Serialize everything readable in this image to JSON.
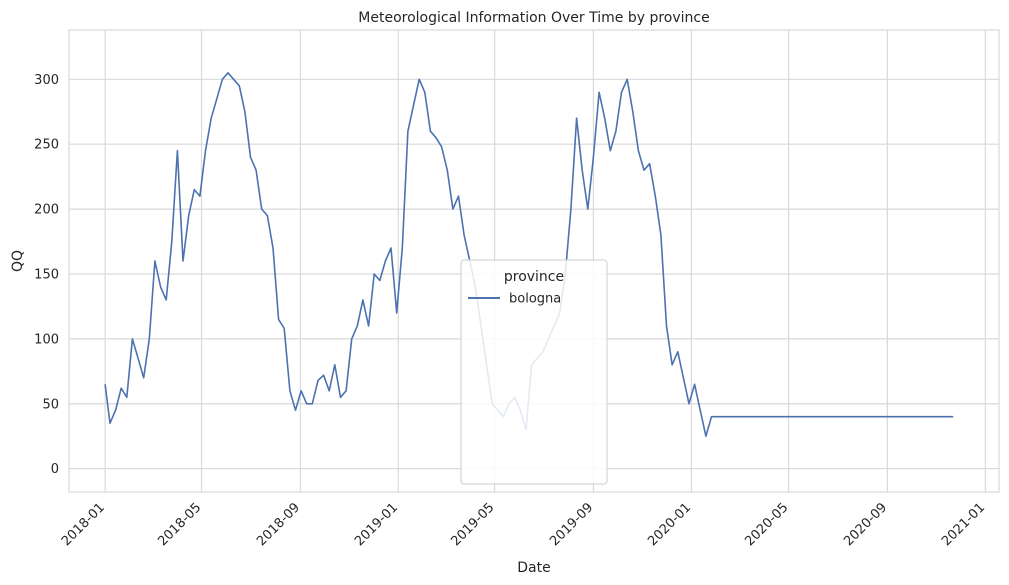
{
  "chart_data": {
    "type": "line",
    "title": "Meteorological Information Over Time by province",
    "xlabel": "Date",
    "ylabel": "QQ",
    "x_range": [
      "2017-11-17",
      "2021-01-18"
    ],
    "ylim": [
      -18,
      338
    ],
    "x_ticks": [
      "2018-01",
      "2018-05",
      "2018-09",
      "2019-01",
      "2019-05",
      "2019-09",
      "2020-01",
      "2020-05",
      "2020-09",
      "2021-01"
    ],
    "y_ticks": [
      0,
      50,
      100,
      150,
      200,
      250,
      300
    ],
    "grid": true,
    "legend": {
      "title": "province",
      "placement": "center"
    },
    "series_x": [
      "2018-01-01",
      "2018-01-07",
      "2018-01-14",
      "2018-01-21",
      "2018-01-28",
      "2018-02-04",
      "2018-02-11",
      "2018-02-18",
      "2018-02-25",
      "2018-03-04",
      "2018-03-11",
      "2018-03-18",
      "2018-03-25",
      "2018-04-01",
      "2018-04-08",
      "2018-04-15",
      "2018-04-22",
      "2018-04-29",
      "2018-05-06",
      "2018-05-13",
      "2018-05-20",
      "2018-05-27",
      "2018-06-03",
      "2018-06-10",
      "2018-06-17",
      "2018-06-24",
      "2018-07-01",
      "2018-07-08",
      "2018-07-15",
      "2018-07-22",
      "2018-07-29",
      "2018-08-05",
      "2018-08-12",
      "2018-08-19",
      "2018-08-26",
      "2018-09-02",
      "2018-09-09",
      "2018-09-16",
      "2018-09-23",
      "2018-09-30",
      "2018-10-07",
      "2018-10-14",
      "2018-10-21",
      "2018-10-28",
      "2018-11-04",
      "2018-11-11",
      "2018-11-18",
      "2018-11-25",
      "2018-12-02",
      "2018-12-09",
      "2018-12-16",
      "2018-12-23",
      "2018-12-30",
      "2019-01-06",
      "2019-01-13",
      "2019-01-20",
      "2019-01-27",
      "2019-02-03",
      "2019-02-10",
      "2019-02-17",
      "2019-02-24",
      "2019-03-03",
      "2019-03-10",
      "2019-03-17",
      "2019-03-24",
      "2019-03-31",
      "2019-04-07",
      "2019-04-14",
      "2019-04-21",
      "2019-04-28",
      "2019-05-05",
      "2019-05-12",
      "2019-05-19",
      "2019-05-26",
      "2019-06-02",
      "2019-06-09",
      "2019-06-16",
      "2019-06-23",
      "2019-06-30",
      "2019-07-07",
      "2019-07-14",
      "2019-07-21",
      "2019-07-28",
      "2019-08-04",
      "2019-08-11",
      "2019-08-18",
      "2019-08-25",
      "2019-09-01",
      "2019-09-08",
      "2019-09-15",
      "2019-09-22",
      "2019-09-29",
      "2019-10-06",
      "2019-10-13",
      "2019-10-20",
      "2019-10-27",
      "2019-11-03",
      "2019-11-10",
      "2019-11-17",
      "2019-11-24",
      "2019-12-01",
      "2019-12-08",
      "2019-12-15",
      "2019-12-22",
      "2019-12-29",
      "2020-01-05",
      "2020-01-12",
      "2020-01-19",
      "2020-01-26",
      "2020-02-02",
      "2020-02-09",
      "2020-02-16",
      "2020-02-23",
      "2020-03-01",
      "2020-03-08",
      "2020-03-15",
      "2020-03-22",
      "2020-03-29",
      "2020-04-05",
      "2020-04-12",
      "2020-04-19",
      "2020-04-26",
      "2020-05-03",
      "2020-05-10",
      "2020-05-17",
      "2020-05-24",
      "2020-05-31",
      "2020-06-07",
      "2020-06-14",
      "2020-06-21",
      "2020-06-28",
      "2020-07-05",
      "2020-07-12",
      "2020-07-19",
      "2020-07-26",
      "2020-08-02",
      "2020-08-09",
      "2020-08-16",
      "2020-08-23",
      "2020-08-30",
      "2020-09-06",
      "2020-09-13",
      "2020-09-20",
      "2020-09-27",
      "2020-10-04",
      "2020-10-11",
      "2020-10-18",
      "2020-10-25",
      "2020-11-01",
      "2020-11-08",
      "2020-11-15",
      "2020-11-22",
      "2020-11-29",
      "2020-12-06",
      "2020-12-13",
      "2020-12-20",
      "2020-12-27",
      "2020-12-31"
    ],
    "series": [
      {
        "name": "bologna",
        "color": "#4c72b0",
        "values": [
          65,
          35,
          45,
          62,
          55,
          100,
          85,
          70,
          100,
          160,
          140,
          130,
          175,
          245,
          160,
          195,
          215,
          210,
          245,
          270,
          285,
          300,
          305,
          300,
          295,
          275,
          240,
          230,
          200,
          195,
          170,
          115,
          108,
          60,
          45,
          60,
          50,
          50,
          68,
          72,
          60,
          80,
          55,
          60,
          100,
          110,
          130,
          110,
          150,
          145,
          160,
          170,
          120,
          170,
          260,
          280,
          300,
          290,
          260,
          255,
          248,
          230,
          200,
          210,
          180,
          160,
          140,
          110,
          80,
          50,
          45,
          40,
          50,
          55,
          45,
          30,
          80,
          85,
          90,
          100,
          110,
          120,
          150,
          200,
          270,
          230,
          200,
          240,
          290,
          270,
          245,
          260,
          290,
          300,
          275,
          245,
          230,
          235,
          210,
          180,
          110,
          80,
          90,
          70,
          50,
          65,
          45,
          25,
          40,
          40,
          40,
          40,
          40,
          40,
          40,
          40,
          40,
          40,
          40,
          40,
          40,
          40,
          40,
          40,
          40,
          40,
          40,
          40,
          40,
          40,
          40,
          40,
          40,
          40,
          40,
          40,
          40,
          40,
          40,
          40,
          40,
          40,
          40,
          40,
          40,
          40,
          40,
          40,
          40,
          40,
          40,
          40
        ]
      }
    ]
  }
}
